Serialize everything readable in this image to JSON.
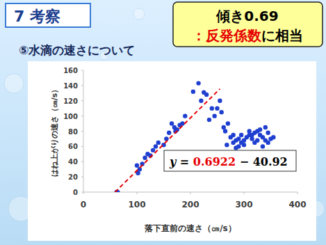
{
  "slide": {
    "section": "7 考察",
    "heading": "⑤水滴の速さについて",
    "callout_title": "傾き0.69",
    "callout_parts": [
      {
        "text": "：反発係数",
        "color": "#e60000"
      },
      {
        "text": "に相当",
        "color": "#000000"
      }
    ]
  },
  "chart_data": {
    "type": "scatter",
    "xlabel": "落下直前の速さ（㎝/s）",
    "ylabel": "はね上がりの速さ（㎝/s）",
    "xlim": [
      0,
      400
    ],
    "ylim": [
      0,
      160
    ],
    "xticks": [
      0,
      100,
      200,
      300,
      400
    ],
    "yticks": [
      0,
      20,
      40,
      60,
      80,
      100,
      120,
      140,
      160
    ],
    "color": "#1f3fd0",
    "marker": "circle",
    "x": [
      62,
      64,
      100,
      102,
      105,
      110,
      115,
      120,
      125,
      130,
      135,
      140,
      150,
      155,
      160,
      165,
      170,
      172,
      175,
      180,
      185,
      190,
      205,
      215,
      220,
      225,
      230,
      235,
      240,
      245,
      250,
      255,
      258,
      262,
      265,
      268,
      270,
      275,
      280,
      280,
      285,
      285,
      290,
      290,
      295,
      295,
      300,
      300,
      305,
      310,
      310,
      315,
      315,
      320,
      320,
      325,
      325,
      330,
      330,
      335,
      335,
      340,
      340,
      345,
      345,
      350,
      355
    ],
    "y": [
      0,
      0,
      35,
      25,
      30,
      37,
      45,
      50,
      48,
      55,
      60,
      65,
      62,
      70,
      78,
      90,
      85,
      80,
      82,
      88,
      90,
      100,
      132,
      143,
      120,
      131,
      128,
      95,
      110,
      100,
      110,
      120,
      105,
      85,
      80,
      62,
      90,
      72,
      65,
      75,
      58,
      68,
      70,
      60,
      75,
      65,
      68,
      62,
      72,
      75,
      80,
      70,
      75,
      78,
      65,
      80,
      68,
      75,
      82,
      72,
      60,
      68,
      85,
      65,
      78,
      70,
      72
    ],
    "fit": {
      "slope": 0.6922,
      "intercept": -40.92,
      "x_range": [
        59,
        255
      ],
      "color": "#e60000",
      "line_style": "dashed"
    },
    "equation": {
      "lhs": "y = ",
      "slope_text": "0.6922",
      "rest": "  − 40.92"
    }
  }
}
